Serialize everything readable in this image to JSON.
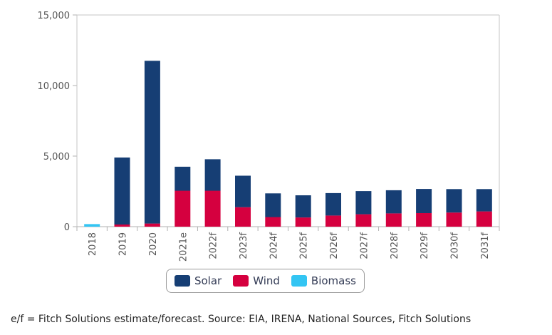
{
  "colors": {
    "Solar": "#163e74",
    "Wind": "#d5003f",
    "Biomass": "#33c5f3"
  },
  "legend": {
    "items": [
      "Solar",
      "Wind",
      "Biomass"
    ]
  },
  "footnote": "e/f = Fitch Solutions estimate/forecast. Source: EIA, IRENA, National Sources, Fitch Solutions",
  "chart_data": {
    "type": "bar",
    "stacked": true,
    "categories": [
      "2018",
      "2019",
      "2020",
      "2021e",
      "2022f",
      "2023f",
      "2024f",
      "2025f",
      "2026f",
      "2027f",
      "2028f",
      "2029f",
      "2030f",
      "2031f"
    ],
    "series": [
      {
        "name": "Biomass",
        "values": [
          180,
          0,
          0,
          0,
          0,
          0,
          0,
          0,
          0,
          0,
          0,
          0,
          0,
          0
        ]
      },
      {
        "name": "Wind",
        "values": [
          0,
          150,
          220,
          2550,
          2550,
          1380,
          680,
          650,
          790,
          880,
          940,
          960,
          1000,
          1080
        ]
      },
      {
        "name": "Solar",
        "values": [
          0,
          4750,
          11530,
          1700,
          2230,
          2230,
          1680,
          1570,
          1590,
          1640,
          1640,
          1710,
          1660,
          1580
        ]
      }
    ],
    "ylim": [
      0,
      15000
    ],
    "yticks": [
      "0",
      "5,000",
      "10,000",
      "15,000"
    ],
    "ytick_values": [
      0,
      5000,
      10000,
      15000
    ],
    "grid": false,
    "legend_position": "bottom"
  }
}
